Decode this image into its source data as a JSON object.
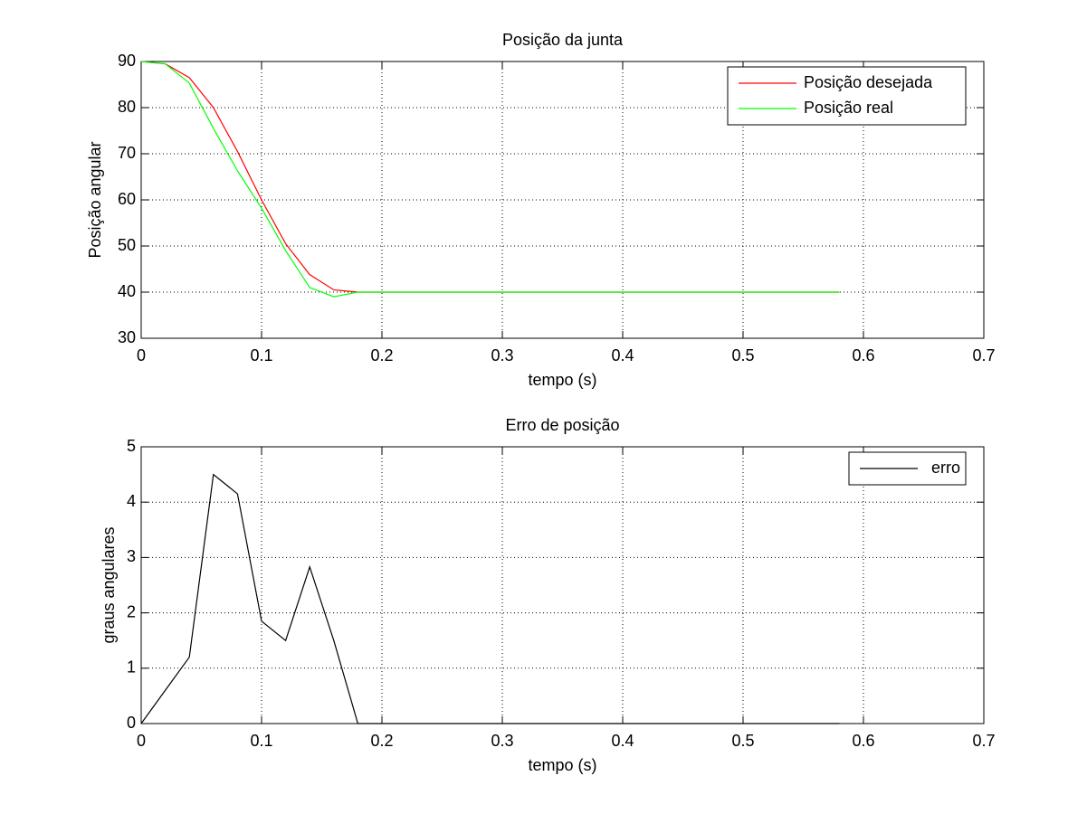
{
  "chart_data": [
    {
      "type": "line",
      "title": "Posição da junta",
      "xlabel": "tempo (s)",
      "ylabel": "Posição angular",
      "x": [
        0,
        0.02,
        0.04,
        0.06,
        0.08,
        0.1,
        0.12,
        0.14,
        0.16,
        0.18,
        0.2,
        0.22,
        0.24,
        0.26,
        0.28,
        0.3,
        0.32,
        0.34,
        0.36,
        0.38,
        0.4,
        0.42,
        0.44,
        0.46,
        0.48,
        0.5,
        0.52,
        0.54,
        0.56,
        0.58
      ],
      "series": [
        {
          "name": "Posição desejada",
          "color": "#ff0000",
          "values": [
            90,
            89.5,
            86.5,
            80,
            70.5,
            60,
            50.5,
            43.8,
            40.5,
            40,
            40,
            40,
            40,
            40,
            40,
            40,
            40,
            40,
            40,
            40,
            40,
            40,
            40,
            40,
            40,
            40,
            40,
            40,
            40,
            40
          ]
        },
        {
          "name": "Posição real",
          "color": "#00ff00",
          "values": [
            90,
            89.5,
            85.3,
            75.5,
            66.3,
            58.2,
            49,
            41,
            39,
            40,
            40,
            40,
            40,
            40,
            40,
            40,
            40,
            40,
            40,
            40,
            40,
            40,
            40,
            40,
            40,
            40,
            40,
            40,
            40,
            40
          ]
        }
      ],
      "xlim": [
        0,
        0.7
      ],
      "xticks": [
        0,
        0.1,
        0.2,
        0.3,
        0.4,
        0.5,
        0.6,
        0.7
      ],
      "ylim": [
        30,
        90
      ],
      "yticks": [
        30,
        40,
        50,
        60,
        70,
        80,
        90
      ],
      "grid": true,
      "legend": "upper right"
    },
    {
      "type": "line",
      "title": "Erro de posição",
      "xlabel": "tempo (s)",
      "ylabel": "graus angulares",
      "x": [
        0,
        0.02,
        0.04,
        0.06,
        0.08,
        0.1,
        0.12,
        0.14,
        0.16,
        0.18,
        0.2,
        0.22,
        0.24,
        0.26,
        0.28,
        0.3,
        0.32,
        0.34,
        0.36,
        0.38,
        0.4,
        0.42,
        0.44,
        0.46,
        0.48,
        0.5,
        0.52,
        0.54,
        0.56,
        0.58
      ],
      "series": [
        {
          "name": "erro",
          "color": "#000000",
          "values": [
            0,
            0.6,
            1.2,
            4.5,
            4.15,
            1.85,
            1.5,
            2.83,
            1.5,
            0,
            0,
            0,
            0,
            0,
            0,
            0,
            0,
            0,
            0,
            0,
            0,
            0,
            0,
            0,
            0,
            0,
            0,
            0,
            0,
            0
          ]
        }
      ],
      "xlim": [
        0,
        0.7
      ],
      "xticks": [
        0,
        0.1,
        0.2,
        0.3,
        0.4,
        0.5,
        0.6,
        0.7
      ],
      "ylim": [
        0,
        5
      ],
      "yticks": [
        0,
        1,
        2,
        3,
        4,
        5
      ],
      "grid": true,
      "legend": "upper right"
    }
  ]
}
